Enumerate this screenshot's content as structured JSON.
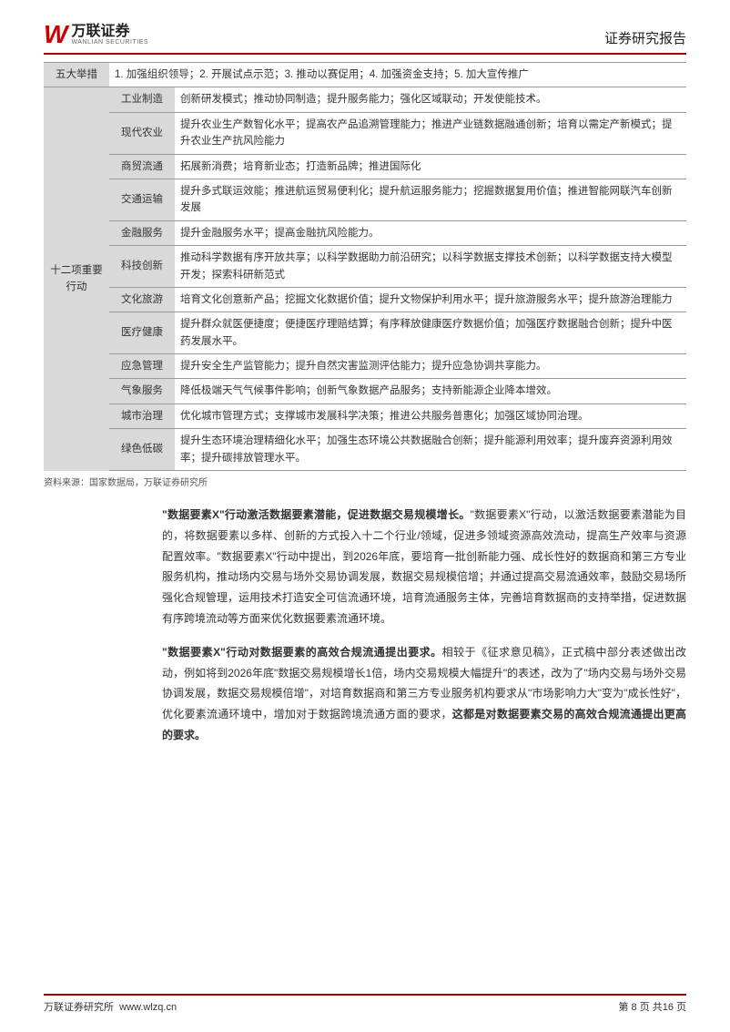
{
  "header": {
    "logo_mark": "W",
    "logo_cn": "万联证券",
    "logo_en": "WANLIAN SECURITIES",
    "report_type": "证券研究报告"
  },
  "table": {
    "row_measures": {
      "label": "五大举措",
      "content": "1. 加强组织领导；2. 开展试点示范；3. 推动以赛促用；4. 加强资金支持；5. 加大宣传推广"
    },
    "group_label": "十二项重要行动",
    "rows": [
      {
        "cat": "工业制造",
        "desc": "创新研发模式；推动协同制造；提升服务能力；强化区域联动；开发使能技术。"
      },
      {
        "cat": "现代农业",
        "desc": "提升农业生产数智化水平；提高农产品追溯管理能力；推进产业链数据融通创新；培育以需定产新模式；提升农业生产抗风险能力"
      },
      {
        "cat": "商贸流通",
        "desc": "拓展新消费；培育新业态；打造新品牌；推进国际化"
      },
      {
        "cat": "交通运输",
        "desc": "提升多式联运效能；推进航运贸易便利化；提升航运服务能力；挖掘数据复用价值；推进智能网联汽车创新发展"
      },
      {
        "cat": "金融服务",
        "desc": "提升金融服务水平；提高金融抗风险能力。"
      },
      {
        "cat": "科技创新",
        "desc": "推动科学数据有序开放共享；以科学数据助力前沿研究；以科学数据支撑技术创新；以科学数据支持大模型开发；探索科研新范式"
      },
      {
        "cat": "文化旅游",
        "desc": "培育文化创意新产品；挖掘文化数据价值；提升文物保护利用水平；提升旅游服务水平；提升旅游治理能力"
      },
      {
        "cat": "医疗健康",
        "desc": "提升群众就医便捷度；便捷医疗理赔结算；有序释放健康医疗数据价值；加强医疗数据融合创新；提升中医药发展水平。"
      },
      {
        "cat": "应急管理",
        "desc": "提升安全生产监管能力；提升自然灾害监测评估能力；提升应急协调共享能力。"
      },
      {
        "cat": "气象服务",
        "desc": "降低极端天气气候事件影响；创新气象数据产品服务；支持新能源企业降本增效。"
      },
      {
        "cat": "城市治理",
        "desc": "优化城市管理方式；支撑城市发展科学决策；推进公共服务普惠化；加强区域协同治理。"
      },
      {
        "cat": "绿色低碳",
        "desc": "提升生态环境治理精细化水平；加强生态环境公共数据融合创新；提升能源利用效率；提升废弃资源利用效率；提升碳排放管理水平。"
      }
    ]
  },
  "source": "资料来源：国家数据局，万联证券研究所",
  "para1": {
    "lead": "\"数据要素X\"行动激活数据要素潜能，促进数据交易规模增长。",
    "text": "\"数据要素X\"行动，以激活数据要素潜能为目的，将数据要素以多样、创新的方式投入十二个行业/领域，促进多领域资源高效流动，提高生产效率与资源配置效率。\"数据要素X\"行动中提出，到2026年底，要培育一批创新能力强、成长性好的数据商和第三方专业服务机构，推动场内交易与场外交易协调发展，数据交易规模倍增；并通过提高交易流通效率，鼓励交易场所强化合规管理，运用技术打造安全可信流通环境，培育流通服务主体，完善培育数据商的支持举措，促进数据有序跨境流动等方面来优化数据要素流通环境。"
  },
  "para2": {
    "lead": "\"数据要素X\"行动对数据要素的高效合规流通提出要求。",
    "text_a": "相较于《征求意见稿》，正式稿中部分表述做出改动，例如将到2026年底\"数据交易规模增长1倍，场内交易规模大幅提升\"的表述，改为了\"场内交易与场外交易协调发展，数据交易规模倍增\"，对培育数据商和第三方专业服务机构要求从\"市场影响力大\"变为\"成长性好\"，优化要素流通环境中，增加对于数据跨境流通方面的要求，",
    "text_b": "这都是对数据要素交易的高效合规流通提出更高的要求。"
  },
  "footer": {
    "left": "万联证券研究所",
    "url": "www.wlzq.cn",
    "page": "第 8 页 共16 页"
  }
}
